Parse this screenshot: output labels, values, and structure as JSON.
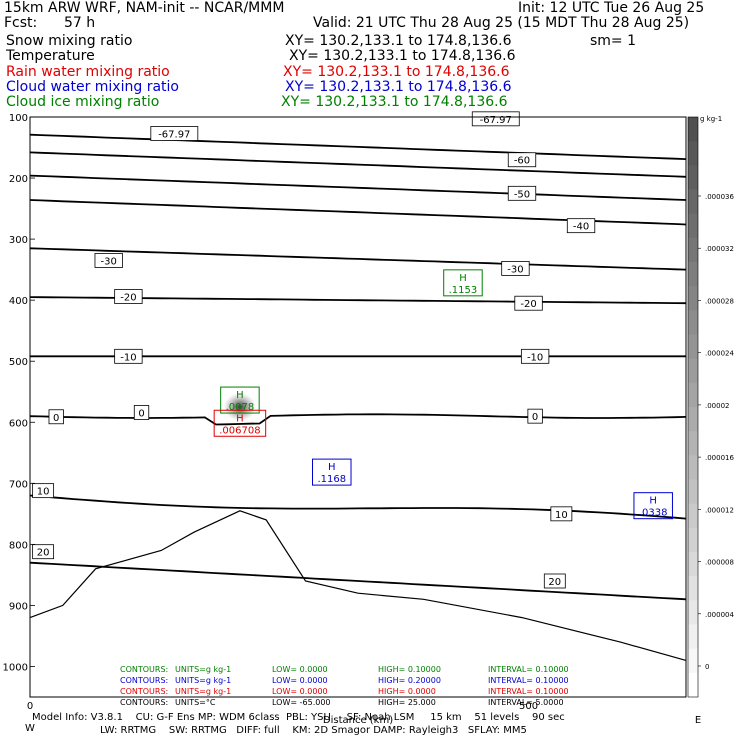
{
  "header": {
    "title_left": "15km ARW WRF, NAM-init -- NCAR/MMM",
    "init": "Init: 12 UTC Tue 26 Aug 25",
    "fcst_label": "Fcst:",
    "fcst_value": "57 h",
    "valid": "Valid: 21 UTC Thu 28 Aug 25 (15 MDT Thu 28 Aug 25)"
  },
  "fields": [
    {
      "name": "Snow mixing ratio",
      "xy": "XY= 130.2,133.1 to 174.8,136.6",
      "extra": "sm= 1",
      "color": "#000000"
    },
    {
      "name": "Temperature",
      "xy": "XY= 130.2,133.1 to 174.8,136.6",
      "extra": "",
      "color": "#000000"
    },
    {
      "name": "Rain water mixing ratio",
      "xy": "XY= 130.2,133.1 to 174.8,136.6",
      "extra": "",
      "color": "#e00000"
    },
    {
      "name": "Cloud water mixing ratio",
      "xy": "XY= 130.2,133.1 to 174.8,136.6",
      "extra": "",
      "color": "#0000d0"
    },
    {
      "name": "Cloud ice mixing ratio",
      "xy": "XY= 130.2,133.1 to 174.8,136.6",
      "extra": "",
      "color": "#008000"
    }
  ],
  "chart_data": {
    "type": "contour cross-section",
    "x_ticks": [
      "0",
      "500"
    ],
    "xlabel": "Distance (km)",
    "x_end_labels": [
      "W",
      "E"
    ],
    "y_ticks": [
      "100",
      "200",
      "300",
      "400",
      "500",
      "600",
      "700",
      "800",
      "900",
      "1000"
    ],
    "yaxis_reversed": true,
    "colorbar": {
      "units": "g kg-1",
      "ticks": [
        "0",
        ".000004",
        ".000008",
        ".000012",
        ".000016",
        ".00002",
        ".000024",
        ".000028",
        ".000032",
        ".000036"
      ]
    },
    "temperature_contours": [
      {
        "level": -67.97,
        "labels": [
          {
            "x": 0.22,
            "p": 127,
            "text": "-67.97"
          },
          {
            "x": 0.71,
            "p": 103,
            "text": "-67.97"
          }
        ]
      },
      {
        "level": -60,
        "labels": [
          {
            "x": 0.75,
            "p": 170,
            "text": "-60"
          }
        ]
      },
      {
        "level": -50,
        "labels": [
          {
            "x": 0.75,
            "p": 225,
            "text": "-50"
          }
        ]
      },
      {
        "level": -40,
        "labels": [
          {
            "x": 0.84,
            "p": 278,
            "text": "-40"
          }
        ]
      },
      {
        "level": -30,
        "labels": [
          {
            "x": 0.12,
            "p": 335,
            "text": "-30"
          },
          {
            "x": 0.74,
            "p": 348,
            "text": "-30"
          }
        ]
      },
      {
        "level": -20,
        "labels": [
          {
            "x": 0.15,
            "p": 394,
            "text": "-20"
          },
          {
            "x": 0.76,
            "p": 405,
            "text": "-20"
          }
        ]
      },
      {
        "level": -10,
        "labels": [
          {
            "x": 0.15,
            "p": 492,
            "text": "-10"
          },
          {
            "x": 0.77,
            "p": 492,
            "text": "-10"
          }
        ]
      },
      {
        "level": 0,
        "labels": [
          {
            "x": 0.04,
            "p": 591,
            "text": "0"
          },
          {
            "x": 0.17,
            "p": 584,
            "text": "0"
          },
          {
            "x": 0.77,
            "p": 590,
            "text": "0"
          }
        ]
      },
      {
        "level": 10,
        "labels": [
          {
            "x": 0.02,
            "p": 712,
            "text": "10"
          },
          {
            "x": 0.81,
            "p": 750,
            "text": "10"
          }
        ]
      },
      {
        "level": 20,
        "labels": [
          {
            "x": 0.02,
            "p": 812,
            "text": "20"
          },
          {
            "x": 0.8,
            "p": 860,
            "text": "20"
          }
        ]
      }
    ],
    "maxima": [
      {
        "field": "Cloud ice mixing ratio",
        "color": "#008000",
        "letter": "H",
        "value": ".1153",
        "x": 0.66,
        "p": 370
      },
      {
        "field": "Cloud ice mixing ratio",
        "color": "#008000",
        "letter": "H",
        "value": ".0078",
        "x": 0.32,
        "p": 562
      },
      {
        "field": "Rain water mixing ratio",
        "color": "#e00000",
        "letter": "H",
        "value": ".006708",
        "x": 0.32,
        "p": 600
      },
      {
        "field": "Cloud water mixing ratio",
        "color": "#0000d0",
        "letter": "H",
        "value": ".1168",
        "x": 0.46,
        "p": 680
      },
      {
        "field": "Cloud water mixing ratio",
        "color": "#0000d0",
        "letter": "H",
        "value": ".0338",
        "x": 0.95,
        "p": 735
      }
    ],
    "contour_info": [
      {
        "color": "#008000",
        "label": "CONTOURS:",
        "units": "UNITS=g kg-1",
        "low": "LOW= 0.0000",
        "high": "HIGH= 0.10000",
        "interval": "INTERVAL= 0.10000"
      },
      {
        "color": "#0000d0",
        "label": "CONTOURS:",
        "units": "UNITS=g kg-1",
        "low": "LOW= 0.0000",
        "high": "HIGH= 0.20000",
        "interval": "INTERVAL= 0.10000"
      },
      {
        "color": "#e00000",
        "label": "CONTOURS:",
        "units": "UNITS=g kg-1",
        "low": "LOW= 0.0000",
        "high": "HIGH= 0.0000",
        "interval": "INTERVAL= 0.10000"
      },
      {
        "color": "#000000",
        "label": "CONTOURS:",
        "units": "UNITS=°C",
        "low": "LOW= -65.000",
        "high": "HIGH= 25.000",
        "interval": "INTERVAL= 5.0000"
      }
    ]
  },
  "footer": {
    "line1": "Model Info: V3.8.1    CU: G-F Ens MP: WDM 6class  PBL: YSU     SF: Noah LSM     15 km    51 levels    90 sec",
    "line2": "LW: RRTMG    SW: RRTMG   DIFF: full    KM: 2D Smagor DAMP: Rayleigh3   SFLAY: MM5"
  }
}
